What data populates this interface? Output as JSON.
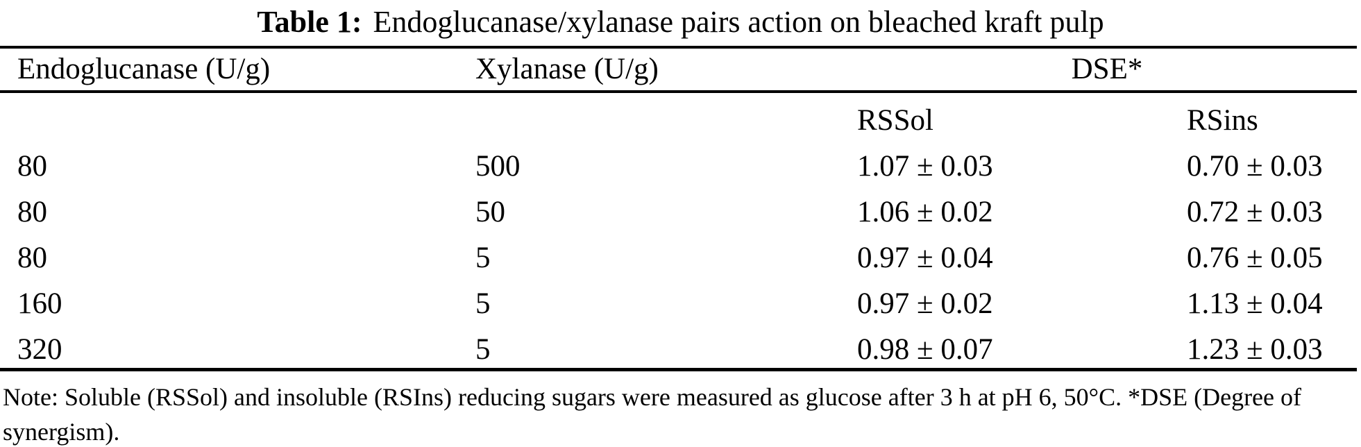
{
  "caption": {
    "label": "Table 1:",
    "text": "Endoglucanase/xylanase pairs action on bleached kraft pulp"
  },
  "header": {
    "endoglucanase": "Endoglucanase (U/g)",
    "xylanase": "Xylanase (U/g)",
    "dse": "DSE*"
  },
  "subheader": {
    "rssol": "RSSol",
    "rsins": "RSins"
  },
  "rows": [
    {
      "endoglucanase": "80",
      "xylanase": "500",
      "rssol": "1.07 ± 0.03",
      "rsins": "0.70 ± 0.03"
    },
    {
      "endoglucanase": "80",
      "xylanase": "50",
      "rssol": "1.06 ± 0.02",
      "rsins": "0.72 ± 0.03"
    },
    {
      "endoglucanase": "80",
      "xylanase": "5",
      "rssol": "0.97 ± 0.04",
      "rsins": "0.76 ± 0.05"
    },
    {
      "endoglucanase": "160",
      "xylanase": "5",
      "rssol": "0.97 ± 0.02",
      "rsins": "1.13 ± 0.04"
    },
    {
      "endoglucanase": "320",
      "xylanase": "5",
      "rssol": "0.98 ± 0.07",
      "rsins": "1.23 ± 0.03"
    }
  ],
  "note": "Note: Soluble (RSSol) and insoluble (RSIns) reducing sugars were measured as glucose after 3 h at pH 6, 50°C. *DSE (Degree of synergism)."
}
